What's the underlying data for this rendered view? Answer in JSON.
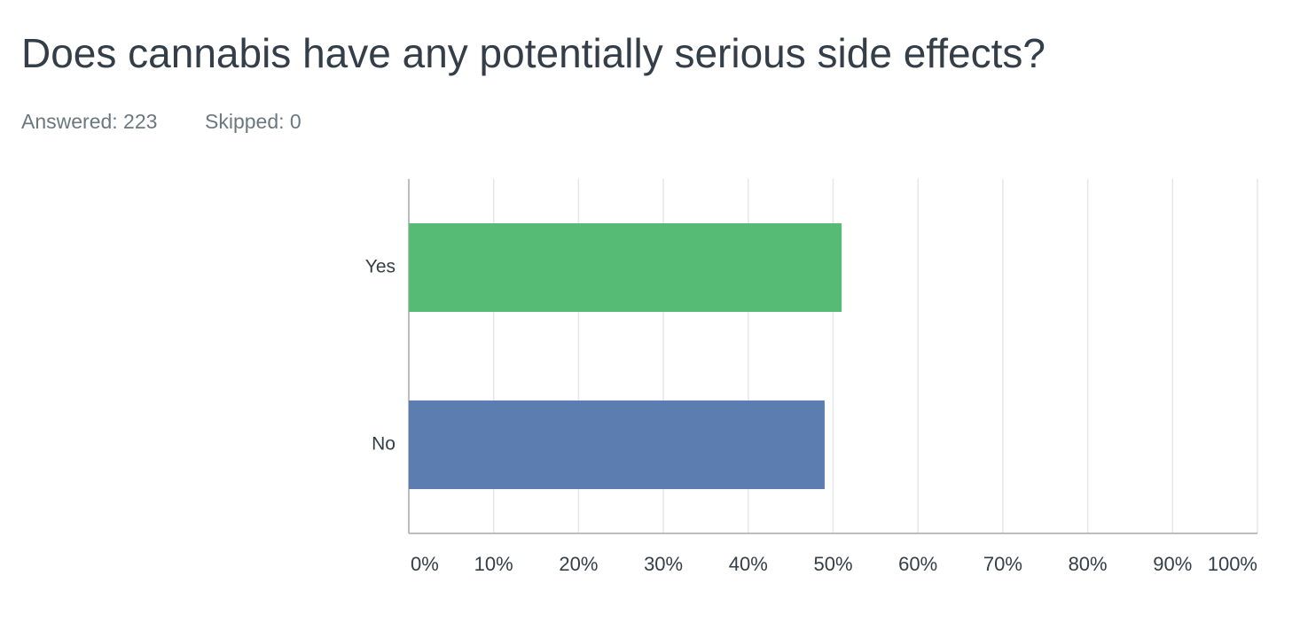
{
  "chart_data": {
    "type": "hbar",
    "title": "Does cannabis have any potentially serious side effects?",
    "stats": [
      "Answered: 223",
      "Skipped: 0"
    ],
    "categories": [
      "Yes",
      "No"
    ],
    "values": [
      51,
      49
    ],
    "colors": [
      "#56bb74",
      "#5b7db0"
    ],
    "xlim": [
      0,
      100
    ],
    "xticks": [
      {
        "value": 0,
        "label": "0%"
      },
      {
        "value": 10,
        "label": "10%"
      },
      {
        "value": 20,
        "label": "20%"
      },
      {
        "value": 30,
        "label": "30%"
      },
      {
        "value": 40,
        "label": "40%"
      },
      {
        "value": 50,
        "label": "50%"
      },
      {
        "value": 60,
        "label": "60%"
      },
      {
        "value": 70,
        "label": "70%"
      },
      {
        "value": 80,
        "label": "80%"
      },
      {
        "value": 90,
        "label": "90%"
      },
      {
        "value": 100,
        "label": "100%"
      }
    ],
    "grid": true
  }
}
